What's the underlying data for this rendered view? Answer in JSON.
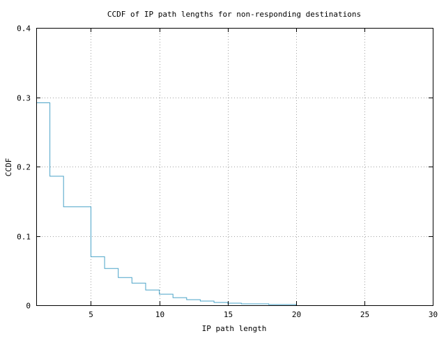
{
  "chart_data": {
    "type": "line",
    "step": true,
    "title": "CCDF of IP path lengths for non-responding destinations",
    "xlabel": "IP path length",
    "ylabel": "CCDF",
    "xlim": [
      1,
      30
    ],
    "ylim": [
      0,
      0.4
    ],
    "xticks": [
      5,
      10,
      15,
      20,
      25,
      30
    ],
    "yticks": [
      0,
      0.1,
      0.2,
      0.3,
      0.4
    ],
    "xtick_labels": [
      "5",
      "10",
      "15",
      "20",
      "25",
      "30"
    ],
    "ytick_labels": [
      "0",
      "0.1",
      "0.2",
      "0.3",
      "0.4"
    ],
    "grid": true,
    "series": [
      {
        "color": "#4aa3c8",
        "x": [
          1,
          2,
          3,
          4,
          5,
          6,
          7,
          8,
          9,
          10,
          11,
          12,
          13,
          14,
          15,
          16,
          17,
          18,
          19,
          20
        ],
        "y": [
          0.292,
          0.186,
          0.142,
          0.142,
          0.07,
          0.053,
          0.04,
          0.032,
          0.022,
          0.016,
          0.011,
          0.008,
          0.006,
          0.004,
          0.003,
          0.002,
          0.002,
          0.001,
          0.001,
          0
        ]
      }
    ]
  }
}
